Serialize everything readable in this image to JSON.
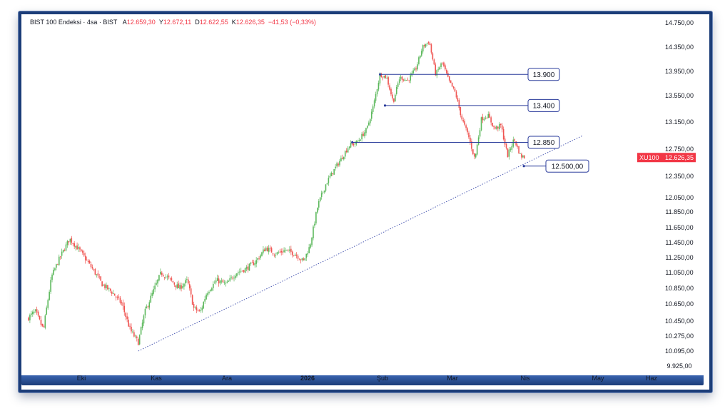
{
  "header": {
    "symbol": "BIST 100 Endeksi · 4sa · BIST",
    "open_label": "A",
    "open_value": "12.659,30",
    "high_label": "Y",
    "high_value": "12.672,11",
    "low_label": "D",
    "low_value": "12.622,55",
    "close_label": "K",
    "close_value": "12.626,35",
    "change": "−41,53 (−0,33%)"
  },
  "price_tag": {
    "ticker": "XU100",
    "price": "12.626,35",
    "color": "#f23645"
  },
  "colors": {
    "up": "#26a69a",
    "up_candle": "#5cb85c",
    "down": "#ef5350",
    "level_line": "#2a3b9b",
    "trend_line": "#3949ab",
    "frame": "#1c3d78"
  },
  "chart_data": {
    "type": "candlestick",
    "symbol": "XU100",
    "timeframe": "4sa",
    "x_ticks": [
      "Eki",
      "Kas",
      "Ara",
      "2026",
      "Şub",
      "Mar",
      "Nis",
      "May",
      "Haz"
    ],
    "y_ticks": [
      "14.750,00",
      "14.350,00",
      "13.950,00",
      "13.550,00",
      "13.150,00",
      "12.750,00",
      "12.350,00",
      "12.050,00",
      "11.850,00",
      "11.650,00",
      "11.450,00",
      "11.250,00",
      "11.050,00",
      "10.850,00",
      "10.650,00",
      "10.450,00",
      "10.275,00",
      "10.095,00",
      "9.925,00"
    ],
    "y_tick_values": [
      14750,
      14350,
      13950,
      13550,
      13150,
      12750,
      12350,
      12050,
      11850,
      11650,
      11450,
      11250,
      11050,
      10850,
      10650,
      10450,
      10275,
      10095,
      9925
    ],
    "ylim": [
      9925,
      14750
    ],
    "last_price": 12626.35,
    "close_path": [
      [
        0,
        10480
      ],
      [
        0.5,
        10560
      ],
      [
        1.0,
        10350
      ],
      [
        1.5,
        11000
      ],
      [
        2.0,
        11250
      ],
      [
        2.6,
        11500
      ],
      [
        3.2,
        11350
      ],
      [
        4.0,
        11100
      ],
      [
        4.6,
        10900
      ],
      [
        5.2,
        10800
      ],
      [
        5.8,
        10650
      ],
      [
        6.3,
        10350
      ],
      [
        6.8,
        10200
      ],
      [
        7.2,
        10550
      ],
      [
        7.7,
        10800
      ],
      [
        8.2,
        11050
      ],
      [
        8.8,
        10950
      ],
      [
        9.3,
        10850
      ],
      [
        9.8,
        10950
      ],
      [
        10.2,
        10600
      ],
      [
        10.6,
        10550
      ],
      [
        11.0,
        10800
      ],
      [
        11.6,
        10950
      ],
      [
        12.2,
        10900
      ],
      [
        12.8,
        11050
      ],
      [
        13.4,
        11100
      ],
      [
        14.0,
        11200
      ],
      [
        14.6,
        11380
      ],
      [
        15.2,
        11300
      ],
      [
        15.8,
        11350
      ],
      [
        16.4,
        11300
      ],
      [
        16.9,
        11200
      ],
      [
        17.3,
        11400
      ],
      [
        17.8,
        11950
      ],
      [
        18.3,
        12250
      ],
      [
        18.8,
        12450
      ],
      [
        19.2,
        12600
      ],
      [
        19.7,
        12800
      ],
      [
        20.2,
        12850
      ],
      [
        20.8,
        13050
      ],
      [
        21.2,
        13400
      ],
      [
        21.6,
        13900
      ],
      [
        22.0,
        13850
      ],
      [
        22.4,
        13450
      ],
      [
        22.8,
        13850
      ],
      [
        23.3,
        13800
      ],
      [
        23.8,
        14000
      ],
      [
        24.2,
        14350
      ],
      [
        24.6,
        14450
      ],
      [
        25.0,
        13900
      ],
      [
        25.4,
        14100
      ],
      [
        25.8,
        13800
      ],
      [
        26.2,
        13600
      ],
      [
        26.6,
        13200
      ],
      [
        27.0,
        12950
      ],
      [
        27.4,
        12600
      ],
      [
        27.8,
        13200
      ],
      [
        28.2,
        13250
      ],
      [
        28.6,
        13050
      ],
      [
        29.0,
        13100
      ],
      [
        29.4,
        12650
      ],
      [
        29.8,
        12900
      ],
      [
        30.2,
        12650
      ],
      [
        30.5,
        12626
      ]
    ],
    "horizontal_levels": [
      {
        "label": "13.900",
        "value": 13900
      },
      {
        "label": "13.400",
        "value": 13400
      },
      {
        "label": "12.850",
        "value": 12850
      },
      {
        "label": "12.500,00",
        "value": 12500
      }
    ],
    "trendline": {
      "from": [
        6.8,
        10095
      ],
      "to": [
        34.0,
        12950
      ]
    },
    "legend": "none",
    "grid": false
  }
}
